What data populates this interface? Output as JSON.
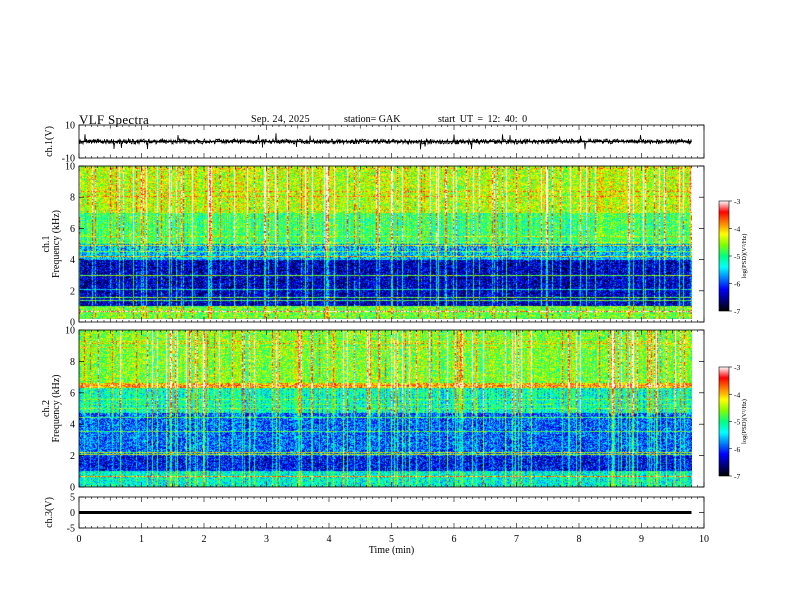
{
  "header": {
    "title": "VLF  Spectra",
    "date": "Sep. 24, 2025",
    "station": "station= GAK",
    "start_ut": "start  UT =   12: 40: 0"
  },
  "colors": {
    "spectrogram_scale": [
      "#000000",
      "#00007f",
      "#0000ff",
      "#0080ff",
      "#00ffff",
      "#00ff80",
      "#80ff00",
      "#ffff00",
      "#ff8000",
      "#ff0000",
      "#ffffff"
    ]
  },
  "chart_data": [
    {
      "type": "line",
      "name": "ch1-waveform",
      "ylabel": "ch.1(V)",
      "ylim": [
        -10,
        10
      ],
      "yticks": [
        "10",
        "-10"
      ],
      "xlim": [
        0,
        10
      ],
      "baseline_v": 0,
      "noise_amplitude_v": 1.5,
      "spikes_v": 5,
      "trace_end_min": 9.8
    },
    {
      "type": "heatmap",
      "name": "ch1-spectrogram",
      "ylabel": "ch.1\nFrequency (kHz)",
      "ylim": [
        0,
        10
      ],
      "yticks": [
        "0",
        "2",
        "4",
        "6",
        "8",
        "10"
      ],
      "xlim": [
        0,
        10
      ],
      "data_end_min": 9.8,
      "colorbar": {
        "label": "log(PSD)(V²/Hz)",
        "range": [
          -7,
          -3
        ],
        "ticks": [
          "-3",
          "-4",
          "-5",
          "-6",
          "-7"
        ]
      },
      "bands": [
        {
          "from_khz": 0.0,
          "to_khz": 0.2,
          "log_psd": -6.9
        },
        {
          "from_khz": 0.2,
          "to_khz": 1.0,
          "log_psd": -4.7
        },
        {
          "from_khz": 1.0,
          "to_khz": 4.0,
          "log_psd": -6.4
        },
        {
          "from_khz": 4.0,
          "to_khz": 5.0,
          "log_psd": -5.6
        },
        {
          "from_khz": 5.0,
          "to_khz": 7.0,
          "log_psd": -4.9
        },
        {
          "from_khz": 7.0,
          "to_khz": 10.0,
          "log_psd": -4.4
        }
      ]
    },
    {
      "type": "heatmap",
      "name": "ch2-spectrogram",
      "ylabel": "ch.2\nFrequency (kHz)",
      "ylim": [
        0,
        10
      ],
      "yticks": [
        "0",
        "2",
        "4",
        "6",
        "8",
        "10"
      ],
      "xlim": [
        0,
        10
      ],
      "data_end_min": 9.8,
      "colorbar": {
        "label": "log(PSD)(V²/Hz)",
        "range": [
          -7,
          -3
        ],
        "ticks": [
          "-3",
          "-4",
          "-5",
          "-6",
          "-7"
        ]
      },
      "bands": [
        {
          "from_khz": 0.0,
          "to_khz": 1.0,
          "log_psd": -5.3
        },
        {
          "from_khz": 1.0,
          "to_khz": 2.0,
          "log_psd": -6.2
        },
        {
          "from_khz": 2.0,
          "to_khz": 4.7,
          "log_psd": -5.9
        },
        {
          "from_khz": 4.7,
          "to_khz": 6.3,
          "log_psd": -5.2
        },
        {
          "from_khz": 6.3,
          "to_khz": 6.6,
          "log_psd": -4.0
        },
        {
          "from_khz": 6.6,
          "to_khz": 10.0,
          "log_psd": -4.6
        }
      ]
    },
    {
      "type": "line",
      "name": "ch3-waveform",
      "ylabel": "ch.3(V)",
      "ylim": [
        -5,
        5
      ],
      "yticks": [
        "5",
        "0",
        "-5"
      ],
      "xlim": [
        0,
        10
      ],
      "baseline_v": 0,
      "trace_end_min": 9.8
    }
  ],
  "x_axis": {
    "label": "Time  (min)",
    "range": [
      0,
      10
    ],
    "ticks": [
      "0",
      "1",
      "2",
      "3",
      "4",
      "5",
      "6",
      "7",
      "8",
      "9",
      "10"
    ]
  }
}
